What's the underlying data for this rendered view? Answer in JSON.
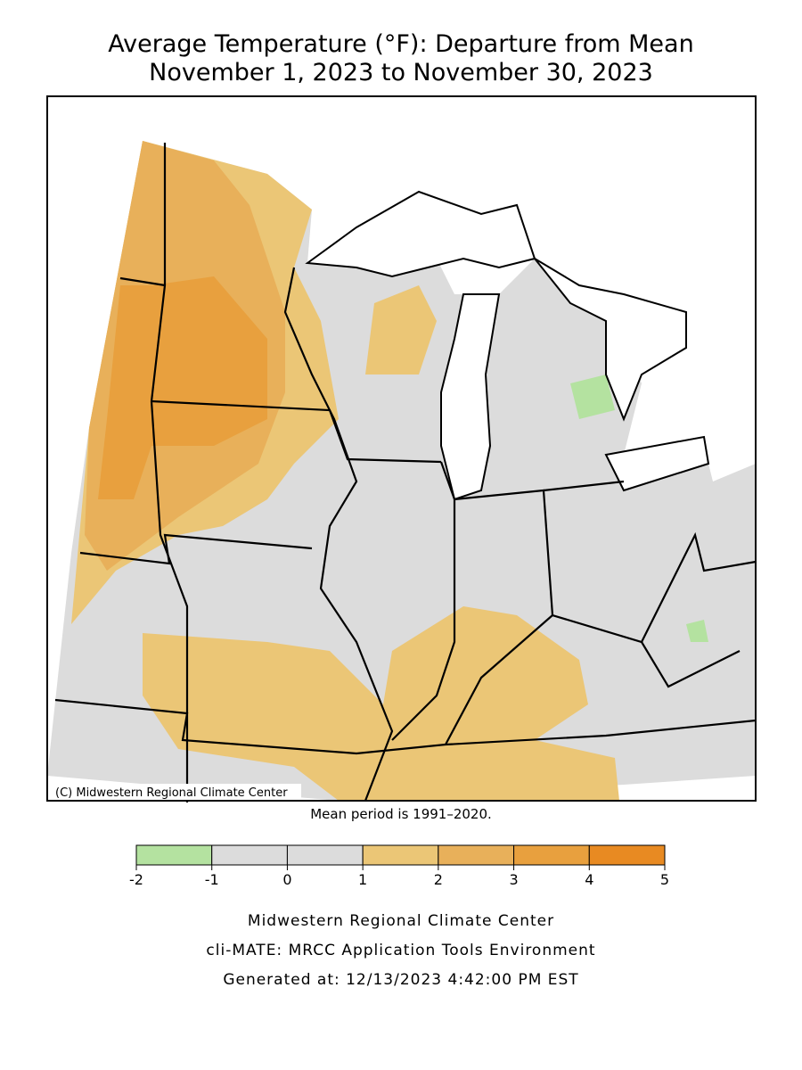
{
  "title": [
    "Average Temperature (°F): Departure from Mean",
    "November 1, 2023 to November 30, 2023"
  ],
  "map": {
    "credit": "(C) Midwestern Regional Climate Center",
    "note": "Mean period is 1991–2020."
  },
  "legend": {
    "bins": [
      -2,
      -1,
      0,
      1,
      2,
      3,
      4,
      5
    ],
    "colors": [
      "#b4e2a0",
      "#dcdcdc",
      "#dcdcdc",
      "#ebc676",
      "#e8b05a",
      "#e8a03e",
      "#e88a22"
    ]
  },
  "footer": [
    "Midwestern Regional Climate Center",
    "cli-MATE: MRCC Application Tools Environment",
    "Generated at: 12/13/2023 4:42:00 PM EST"
  ]
}
